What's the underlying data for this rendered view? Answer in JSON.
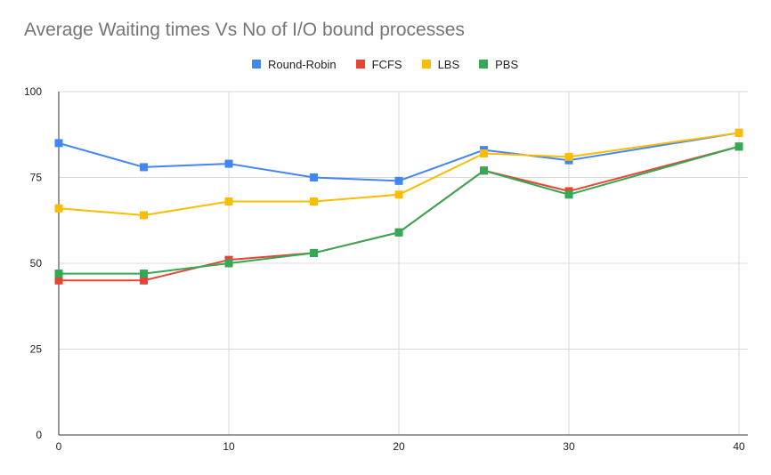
{
  "chart_data": {
    "type": "line",
    "title": "Average Waiting times Vs No of I/O bound processes",
    "xlabel": "",
    "ylabel": "",
    "x": [
      0,
      5,
      10,
      15,
      20,
      25,
      30,
      40
    ],
    "xticks": [
      0,
      10,
      20,
      30,
      40
    ],
    "xlim": [
      0,
      40
    ],
    "yticks": [
      0,
      25,
      50,
      75,
      100
    ],
    "ylim": [
      0,
      100
    ],
    "grid": true,
    "legend_position": "top",
    "marker": "square",
    "series": [
      {
        "name": "Round-Robin",
        "color": "#4285f4",
        "values": [
          85,
          78,
          79,
          75,
          74,
          83,
          80,
          88
        ]
      },
      {
        "name": "FCFS",
        "color": "#ea4335",
        "values": [
          45,
          45,
          51,
          53,
          59,
          77,
          71,
          84
        ]
      },
      {
        "name": "LBS",
        "color": "#fbbc04",
        "values": [
          66,
          64,
          68,
          68,
          70,
          82,
          81,
          88
        ]
      },
      {
        "name": "PBS",
        "color": "#34a853",
        "values": [
          47,
          47,
          50,
          53,
          59,
          77,
          70,
          84
        ]
      }
    ]
  }
}
